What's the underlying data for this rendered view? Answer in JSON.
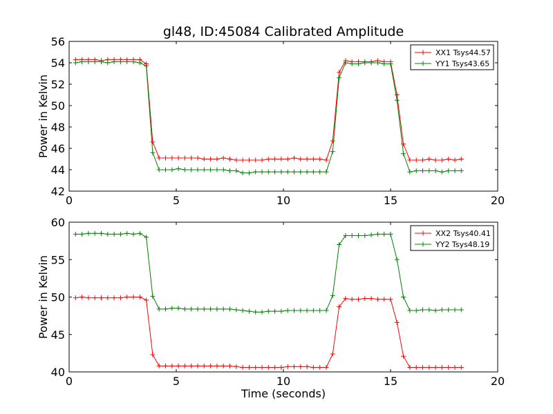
{
  "chart_data": [
    {
      "type": "line",
      "title": "gl48, ID:45084 Calibrated Amplitude",
      "xlabel": "",
      "ylabel": "Power in Kelvin",
      "xlim": [
        0,
        20
      ],
      "ylim": [
        42,
        56
      ],
      "xticks": [
        0,
        5,
        10,
        15,
        20
      ],
      "yticks": [
        42,
        44,
        46,
        48,
        50,
        52,
        54,
        56
      ],
      "grid": false,
      "legend": "top-right",
      "x": [
        0.3,
        0.6,
        0.9,
        1.2,
        1.5,
        1.8,
        2.1,
        2.4,
        2.7,
        3.0,
        3.3,
        3.6,
        3.9,
        4.2,
        4.5,
        4.8,
        5.1,
        5.4,
        5.7,
        6.0,
        6.3,
        6.6,
        6.9,
        7.2,
        7.5,
        7.8,
        8.1,
        8.4,
        8.7,
        9.0,
        9.3,
        9.6,
        9.9,
        10.2,
        10.5,
        10.8,
        11.1,
        11.4,
        11.7,
        12.0,
        12.3,
        12.6,
        12.9,
        13.2,
        13.5,
        13.8,
        14.1,
        14.4,
        14.7,
        15.0,
        15.3,
        15.6,
        15.9,
        16.2,
        16.5,
        16.8,
        17.1,
        17.4,
        17.7,
        18.0,
        18.3
      ],
      "series": [
        {
          "name": "XX1 Tsys44.57",
          "color": "#ff0000",
          "values": [
            54.3,
            54.3,
            54.3,
            54.3,
            54.2,
            54.3,
            54.3,
            54.3,
            54.3,
            54.3,
            54.3,
            53.9,
            46.6,
            45.1,
            45.1,
            45.1,
            45.1,
            45.1,
            45.1,
            45.1,
            45.0,
            45.0,
            45.0,
            45.1,
            45.0,
            44.9,
            44.9,
            44.9,
            44.9,
            44.9,
            45.0,
            45.0,
            45.0,
            45.0,
            45.1,
            45.0,
            45.0,
            45.0,
            45.0,
            44.9,
            46.7,
            53.1,
            54.2,
            54.1,
            54.1,
            54.1,
            54.1,
            54.2,
            54.1,
            54.1,
            51.0,
            46.4,
            44.9,
            44.9,
            44.9,
            45.0,
            44.9,
            44.9,
            45.0,
            44.9,
            45.0
          ]
        },
        {
          "name": "YY1 Tsys43.65",
          "color": "#008000",
          "values": [
            54.0,
            54.1,
            54.1,
            54.1,
            54.1,
            54.0,
            54.1,
            54.1,
            54.1,
            54.1,
            54.0,
            53.7,
            45.6,
            44.0,
            44.0,
            44.0,
            44.1,
            44.0,
            44.0,
            44.0,
            44.0,
            44.0,
            44.0,
            44.0,
            43.9,
            43.9,
            43.7,
            43.7,
            43.8,
            43.8,
            43.8,
            43.8,
            43.8,
            43.8,
            43.8,
            43.8,
            43.8,
            43.8,
            43.8,
            43.8,
            45.7,
            52.6,
            54.0,
            53.9,
            53.9,
            54.0,
            54.0,
            54.0,
            53.9,
            53.9,
            50.5,
            45.5,
            43.8,
            43.9,
            43.9,
            43.9,
            43.9,
            43.8,
            43.9,
            43.9,
            43.9
          ]
        }
      ]
    },
    {
      "type": "line",
      "title": "",
      "xlabel": "Time (seconds)",
      "ylabel": "Power in Kelvin",
      "xlim": [
        0,
        20
      ],
      "ylim": [
        40,
        60
      ],
      "xticks": [
        0,
        5,
        10,
        15,
        20
      ],
      "yticks": [
        40,
        45,
        50,
        55,
        60
      ],
      "grid": false,
      "legend": "top-right",
      "x": [
        0.3,
        0.6,
        0.9,
        1.2,
        1.5,
        1.8,
        2.1,
        2.4,
        2.7,
        3.0,
        3.3,
        3.6,
        3.9,
        4.2,
        4.5,
        4.8,
        5.1,
        5.4,
        5.7,
        6.0,
        6.3,
        6.6,
        6.9,
        7.2,
        7.5,
        7.8,
        8.1,
        8.4,
        8.7,
        9.0,
        9.3,
        9.6,
        9.9,
        10.2,
        10.5,
        10.8,
        11.1,
        11.4,
        11.7,
        12.0,
        12.3,
        12.6,
        12.9,
        13.2,
        13.5,
        13.8,
        14.1,
        14.4,
        14.7,
        15.0,
        15.3,
        15.6,
        15.9,
        16.2,
        16.5,
        16.8,
        17.1,
        17.4,
        17.7,
        18.0,
        18.3
      ],
      "series": [
        {
          "name": "XX2 Tsys40.41",
          "color": "#ff0000",
          "values": [
            49.9,
            50.0,
            49.9,
            49.9,
            49.9,
            49.9,
            49.9,
            49.9,
            50.0,
            50.0,
            50.0,
            49.6,
            42.3,
            40.8,
            40.8,
            40.8,
            40.8,
            40.8,
            40.8,
            40.8,
            40.8,
            40.8,
            40.8,
            40.8,
            40.8,
            40.7,
            40.6,
            40.6,
            40.6,
            40.6,
            40.6,
            40.6,
            40.6,
            40.7,
            40.7,
            40.7,
            40.7,
            40.6,
            40.6,
            40.6,
            42.4,
            48.7,
            49.8,
            49.7,
            49.7,
            49.8,
            49.8,
            49.7,
            49.7,
            49.7,
            46.6,
            42.1,
            40.6,
            40.6,
            40.6,
            40.6,
            40.6,
            40.6,
            40.6,
            40.6,
            40.6
          ]
        },
        {
          "name": "YY2 Tsys48.19",
          "color": "#008000",
          "values": [
            58.4,
            58.4,
            58.5,
            58.5,
            58.5,
            58.4,
            58.4,
            58.4,
            58.5,
            58.4,
            58.5,
            58.0,
            50.1,
            48.4,
            48.4,
            48.5,
            48.5,
            48.4,
            48.4,
            48.4,
            48.4,
            48.4,
            48.4,
            48.4,
            48.4,
            48.3,
            48.2,
            48.1,
            48.0,
            48.0,
            48.1,
            48.1,
            48.1,
            48.2,
            48.2,
            48.2,
            48.2,
            48.2,
            48.2,
            48.2,
            50.2,
            57.0,
            58.2,
            58.2,
            58.2,
            58.2,
            58.3,
            58.4,
            58.4,
            58.4,
            55.0,
            50.0,
            48.2,
            48.2,
            48.3,
            48.3,
            48.2,
            48.3,
            48.3,
            48.3,
            48.3
          ]
        }
      ]
    }
  ]
}
